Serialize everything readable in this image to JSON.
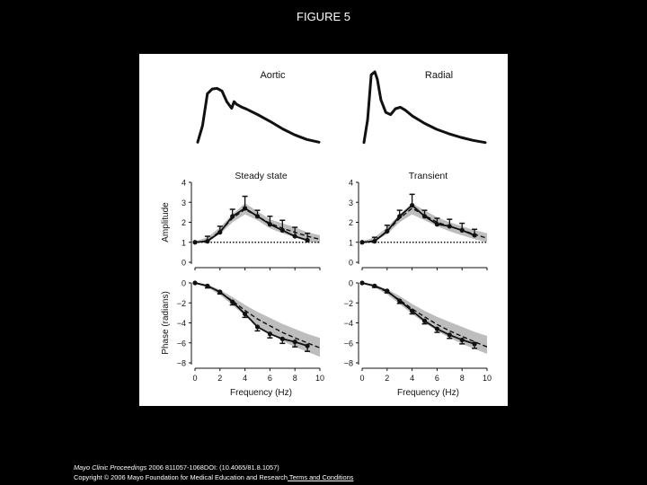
{
  "title": "FIGURE 5",
  "footer": {
    "journal": "Mayo Clinic Proceedings",
    "citation": " 2006 811057-1068DOI: (10.4065/81.8.1057)",
    "copyright": "Copyright © 2006 Mayo Foundation for Medical Education and Research",
    "terms_link": " Terms and Conditions"
  },
  "colors": {
    "background": "#000000",
    "figure_bg": "#ffffff",
    "ink": "#111111",
    "band": "#bdbdbd"
  },
  "chart_data": [
    {
      "type": "line",
      "id": "aortic-waveform",
      "title": "Aortic",
      "xlabel": "",
      "ylabel": "",
      "note": "pressure waveform",
      "x": [
        0,
        0.04,
        0.08,
        0.12,
        0.16,
        0.2,
        0.24,
        0.28,
        0.3,
        0.32,
        0.34,
        0.36,
        0.4,
        0.5,
        0.6,
        0.7,
        0.8,
        0.9,
        1.0
      ],
      "values": [
        0.05,
        0.3,
        0.78,
        0.85,
        0.86,
        0.82,
        0.66,
        0.56,
        0.66,
        0.62,
        0.6,
        0.58,
        0.55,
        0.46,
        0.36,
        0.25,
        0.16,
        0.09,
        0.05
      ],
      "ylim": [
        0,
        1
      ]
    },
    {
      "type": "line",
      "id": "radial-waveform",
      "title": "Radial",
      "xlabel": "",
      "ylabel": "",
      "note": "pressure waveform",
      "x": [
        0,
        0.03,
        0.06,
        0.09,
        0.11,
        0.14,
        0.18,
        0.22,
        0.26,
        0.3,
        0.34,
        0.4,
        0.5,
        0.6,
        0.7,
        0.8,
        0.9,
        1.0
      ],
      "values": [
        0.04,
        0.35,
        0.96,
        1.0,
        0.9,
        0.62,
        0.45,
        0.42,
        0.5,
        0.52,
        0.48,
        0.4,
        0.3,
        0.22,
        0.16,
        0.11,
        0.07,
        0.04
      ],
      "ylim": [
        0,
        1
      ]
    },
    {
      "type": "line",
      "id": "amp-steady",
      "title": "Steady state",
      "xlabel": "",
      "ylabel": "Amplitude",
      "xlim": [
        0,
        10
      ],
      "ylim": [
        0,
        4
      ],
      "xticks": [
        0,
        2,
        4,
        6,
        8,
        10
      ],
      "yticks": [
        0,
        1,
        2,
        3,
        4
      ],
      "reference_line": 1,
      "band": {
        "x": [
          0,
          1,
          2,
          3,
          4,
          5,
          6,
          7,
          8,
          9,
          10
        ],
        "lower": [
          1.0,
          1.05,
          1.4,
          2.0,
          2.4,
          2.1,
          1.7,
          1.45,
          1.25,
          1.05,
          0.95
        ],
        "upper": [
          1.05,
          1.25,
          1.75,
          2.4,
          2.95,
          2.55,
          2.15,
          1.95,
          1.75,
          1.5,
          1.35
        ]
      },
      "series": [
        {
          "style": "solid",
          "x": [
            0,
            1,
            2,
            3,
            4,
            5,
            6,
            7,
            8,
            9
          ],
          "values": [
            1.0,
            1.05,
            1.5,
            2.3,
            2.7,
            2.3,
            1.9,
            1.6,
            1.3,
            1.1
          ],
          "errors": [
            0,
            0.25,
            0.3,
            0.35,
            0.6,
            0.3,
            0.4,
            0.5,
            0.45,
            0.35
          ]
        },
        {
          "style": "dashed",
          "x": [
            0,
            1,
            2,
            3,
            4,
            5,
            6,
            7,
            8,
            9,
            10
          ],
          "values": [
            1.0,
            1.08,
            1.55,
            2.2,
            2.65,
            2.3,
            1.95,
            1.7,
            1.5,
            1.3,
            1.15
          ]
        }
      ]
    },
    {
      "type": "line",
      "id": "amp-transient",
      "title": "Transient",
      "xlabel": "",
      "ylabel": "",
      "xlim": [
        0,
        10
      ],
      "ylim": [
        0,
        4
      ],
      "xticks": [
        0,
        2,
        4,
        6,
        8,
        10
      ],
      "yticks": [
        0,
        1,
        2,
        3,
        4
      ],
      "reference_line": 1,
      "band": {
        "x": [
          0,
          1,
          2,
          3,
          4,
          5,
          6,
          7,
          8,
          9,
          10
        ],
        "lower": [
          1.0,
          1.05,
          1.4,
          2.0,
          2.4,
          2.1,
          1.8,
          1.55,
          1.35,
          1.15,
          1.0
        ],
        "upper": [
          1.05,
          1.25,
          1.75,
          2.4,
          2.95,
          2.6,
          2.25,
          2.0,
          1.8,
          1.6,
          1.45
        ]
      },
      "series": [
        {
          "style": "solid",
          "x": [
            0,
            1,
            2,
            3,
            4,
            5,
            6,
            7,
            8,
            9
          ],
          "values": [
            1.0,
            1.05,
            1.55,
            2.3,
            2.85,
            2.3,
            1.9,
            1.8,
            1.6,
            1.35
          ],
          "errors": [
            0,
            0.2,
            0.3,
            0.3,
            0.55,
            0.3,
            0.3,
            0.35,
            0.35,
            0.3
          ]
        },
        {
          "style": "dashed",
          "x": [
            0,
            1,
            2,
            3,
            4,
            5,
            6,
            7,
            8,
            9,
            10
          ],
          "values": [
            1.0,
            1.08,
            1.55,
            2.2,
            2.7,
            2.35,
            2.0,
            1.8,
            1.6,
            1.4,
            1.2
          ]
        }
      ]
    },
    {
      "type": "line",
      "id": "phase-steady",
      "title": "",
      "xlabel": "Frequency (Hz)",
      "ylabel": "Phase (radians)",
      "xlim": [
        0,
        10
      ],
      "ylim": [
        -8,
        0
      ],
      "xticks": [
        0,
        2,
        4,
        6,
        8,
        10
      ],
      "yticks": [
        0,
        -2,
        -4,
        -6,
        -8
      ],
      "band": {
        "x": [
          0,
          1,
          2,
          3,
          4,
          5,
          6,
          7,
          8,
          9,
          10
        ],
        "lower": [
          -0.1,
          -0.45,
          -1.2,
          -2.2,
          -3.3,
          -4.3,
          -5.1,
          -5.8,
          -6.4,
          -6.9,
          -7.4
        ],
        "upper": [
          0.1,
          -0.15,
          -0.7,
          -1.4,
          -2.2,
          -2.9,
          -3.5,
          -4.1,
          -4.6,
          -5.1,
          -5.5
        ]
      },
      "series": [
        {
          "style": "solid",
          "x": [
            0,
            1,
            2,
            3,
            4,
            5,
            6,
            7,
            8,
            9
          ],
          "values": [
            0,
            -0.3,
            -0.9,
            -1.9,
            -3.1,
            -4.4,
            -5.1,
            -5.6,
            -5.9,
            -6.3
          ],
          "errors": [
            0,
            0.2,
            0.2,
            0.3,
            0.35,
            0.4,
            0.4,
            0.45,
            0.5,
            0.55
          ]
        },
        {
          "style": "dashed",
          "x": [
            0,
            1,
            2,
            3,
            4,
            5,
            6,
            7,
            8,
            9,
            10
          ],
          "values": [
            0,
            -0.3,
            -0.95,
            -1.8,
            -2.75,
            -3.6,
            -4.3,
            -4.95,
            -5.5,
            -6.0,
            -6.5
          ]
        }
      ]
    },
    {
      "type": "line",
      "id": "phase-transient",
      "title": "",
      "xlabel": "Frequency (Hz)",
      "ylabel": "",
      "xlim": [
        0,
        10
      ],
      "ylim": [
        -8,
        0
      ],
      "xticks": [
        0,
        2,
        4,
        6,
        8,
        10
      ],
      "yticks": [
        0,
        -2,
        -4,
        -6,
        -8
      ],
      "band": {
        "x": [
          0,
          1,
          2,
          3,
          4,
          5,
          6,
          7,
          8,
          9,
          10
        ],
        "lower": [
          -0.1,
          -0.45,
          -1.15,
          -2.1,
          -3.1,
          -4.0,
          -4.8,
          -5.5,
          -6.1,
          -6.6,
          -7.1
        ],
        "upper": [
          0.1,
          -0.15,
          -0.65,
          -1.3,
          -2.1,
          -2.8,
          -3.4,
          -3.9,
          -4.4,
          -4.9,
          -5.3
        ]
      },
      "series": [
        {
          "style": "solid",
          "x": [
            0,
            1,
            2,
            3,
            4,
            5,
            6,
            7,
            8,
            9
          ],
          "values": [
            0,
            -0.3,
            -0.8,
            -1.8,
            -2.8,
            -3.8,
            -4.6,
            -5.2,
            -5.7,
            -6.1
          ],
          "errors": [
            0,
            0.15,
            0.2,
            0.25,
            0.3,
            0.3,
            0.35,
            0.35,
            0.4,
            0.45
          ]
        },
        {
          "style": "dashed",
          "x": [
            0,
            1,
            2,
            3,
            4,
            5,
            6,
            7,
            8,
            9,
            10
          ],
          "values": [
            0,
            -0.3,
            -0.9,
            -1.7,
            -2.6,
            -3.4,
            -4.15,
            -4.8,
            -5.35,
            -5.9,
            -6.4
          ]
        }
      ]
    }
  ]
}
